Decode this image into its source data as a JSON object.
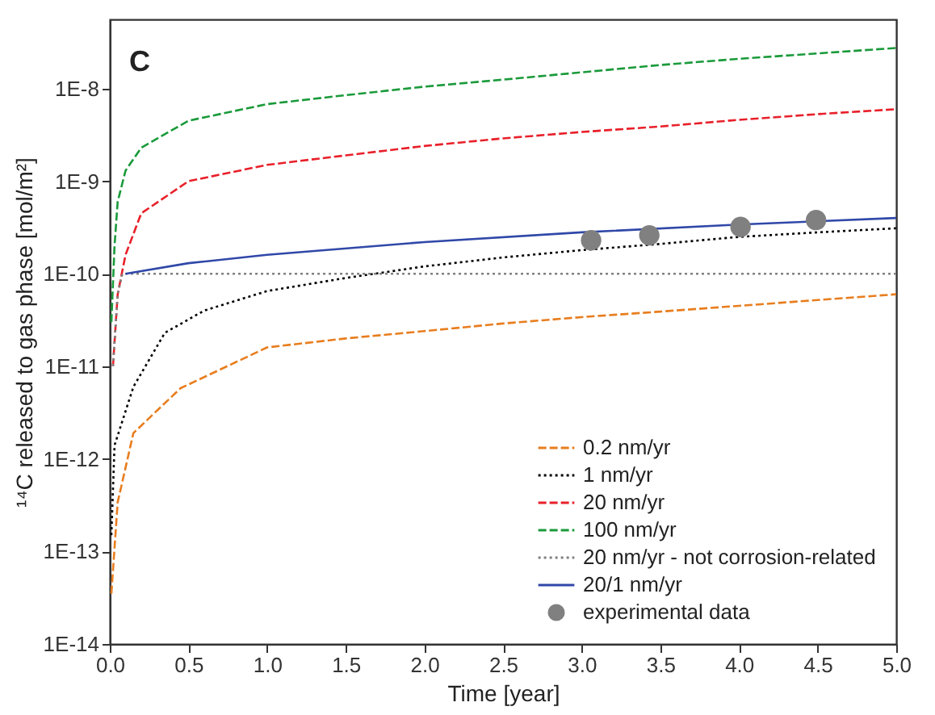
{
  "chart_data": {
    "type": "line",
    "annotations": [
      "C"
    ],
    "xlabel": "Time [year]",
    "ylabel": "¹⁴C released to gas phase [mol/m²]",
    "log": "y",
    "grid": false,
    "legend": "bottom right",
    "xlim": [
      0,
      5
    ],
    "ylim": [
      1e-14,
      5.6e-08
    ],
    "xticks": [
      {
        "value": 0,
        "label": "0.0"
      },
      {
        "value": 0.5,
        "label": "0.5"
      },
      {
        "value": 1,
        "label": "1.0"
      },
      {
        "value": 1.5,
        "label": "1.5"
      },
      {
        "value": 2,
        "label": "2.0"
      },
      {
        "value": 2.5,
        "label": "2.5"
      },
      {
        "value": 3,
        "label": "3.0"
      },
      {
        "value": 3.5,
        "label": "3.5"
      },
      {
        "value": 4,
        "label": "4.0"
      },
      {
        "value": 4.5,
        "label": "4.5"
      },
      {
        "value": 5,
        "label": "5.0"
      }
    ],
    "yticks": [
      {
        "value": 1e-14,
        "label": "1E-14"
      },
      {
        "value": 1e-13,
        "label": "1E-13"
      },
      {
        "value": 1e-12,
        "label": "1E-12"
      },
      {
        "value": 1e-11,
        "label": "1E-11"
      },
      {
        "value": 1e-10,
        "label": "1E-10"
      },
      {
        "value": 1e-09,
        "label": "1E-9"
      },
      {
        "value": 1e-08,
        "label": "1E-8"
      }
    ],
    "series": [
      {
        "name": "0.2 nm/yr",
        "color": "#e87d1e",
        "line_style": "dashed",
        "marker": "none",
        "x": [
          0.01,
          0.05,
          0.15,
          0.45,
          1,
          1.5,
          2,
          2.5,
          3,
          3.5,
          4,
          4.5,
          5
        ],
        "values": [
          3.5e-14,
          3.4e-13,
          1.9e-12,
          5.8e-12,
          1.6e-11,
          2e-11,
          2.4e-11,
          2.9e-11,
          3.4e-11,
          3.9e-11,
          4.5e-11,
          5.2e-11,
          6e-11
        ]
      },
      {
        "name": "1 nm/yr",
        "color": "#000000",
        "line_style": "dotted",
        "marker": "none",
        "x": [
          0.01,
          0.03,
          0.15,
          0.35,
          0.6,
          1,
          1.5,
          2,
          2.5,
          3,
          3.5,
          4,
          4.5,
          5
        ],
        "values": [
          1.5e-13,
          1.4e-12,
          6e-12,
          2.3e-11,
          4e-11,
          6.5e-11,
          9e-11,
          1.2e-10,
          1.5e-10,
          1.8e-10,
          2.1e-10,
          2.5e-10,
          2.8e-10,
          3.1e-10
        ]
      },
      {
        "name": "20 nm/yr",
        "color": "#e8202a",
        "line_style": "dashed",
        "marker": "none",
        "x": [
          0.02,
          0.05,
          0.1,
          0.2,
          0.5,
          1,
          1.5,
          2,
          2.5,
          3,
          3.5,
          4,
          4.5,
          5
        ],
        "values": [
          1e-11,
          6e-11,
          1.6e-10,
          4.5e-10,
          1e-09,
          1.5e-09,
          1.9e-09,
          2.4e-09,
          2.9e-09,
          3.4e-09,
          3.9e-09,
          4.6e-09,
          5.3e-09,
          6e-09
        ]
      },
      {
        "name": "100 nm/yr",
        "color": "#1a9a3a",
        "line_style": "dashed",
        "marker": "none",
        "x": [
          0.01,
          0.03,
          0.05,
          0.1,
          0.2,
          0.5,
          1,
          1.5,
          2,
          2.5,
          3,
          3.5,
          4,
          4.5,
          5
        ],
        "values": [
          3e-11,
          2e-10,
          6e-10,
          1.3e-09,
          2.3e-09,
          4.5e-09,
          6.8e-09,
          8.5e-09,
          1.05e-08,
          1.25e-08,
          1.5e-08,
          1.8e-08,
          2.1e-08,
          2.4e-08,
          2.75e-08
        ]
      },
      {
        "name": "20 nm/yr - not corrosion-related",
        "color": "#808080",
        "line_style": "dotted",
        "marker": "none",
        "x": [
          0.02,
          0.05,
          0.08,
          5
        ],
        "values": [
          1e-11,
          6e-11,
          1e-10,
          1e-10
        ]
      },
      {
        "name": "20/1 nm/yr",
        "color": "#3048a8",
        "line_style": "solid",
        "marker": "none",
        "x": [
          0.1,
          0.5,
          1,
          2,
          3,
          4,
          5
        ],
        "values": [
          1e-10,
          1.3e-10,
          1.6e-10,
          2.2e-10,
          2.8e-10,
          3.4e-10,
          4e-10
        ]
      },
      {
        "name": "experimental data",
        "type": "scatter",
        "color": "#808080",
        "marker": "circle",
        "x": [
          3.06,
          3.43,
          4.01,
          4.49
        ],
        "values": [
          2.3e-10,
          2.6e-10,
          3.2e-10,
          3.8e-10
        ]
      }
    ]
  }
}
